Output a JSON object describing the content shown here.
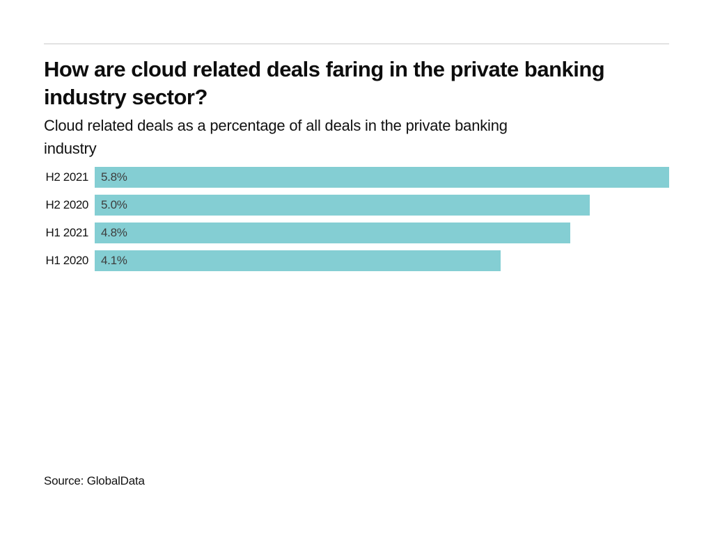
{
  "header": {
    "title_lines": [
      "How are cloud related deals faring in the private banking",
      "industry sector?"
    ],
    "subtitle_lines": [
      "Cloud related deals as a percentage of all deals in the private banking",
      "industry"
    ]
  },
  "chart_data": {
    "type": "bar",
    "orientation": "horizontal",
    "title": "How are cloud related deals faring in the private banking industry sector?",
    "subtitle": "Cloud related deals as a percentage of all deals in the private banking industry",
    "categories": [
      "H2 2021",
      "H2 2020",
      "H1 2021",
      "H1 2020"
    ],
    "values": [
      5.8,
      5.0,
      4.8,
      4.1
    ],
    "value_labels": [
      "5.8%",
      "5.0%",
      "4.8%",
      "4.1%"
    ],
    "xlabel": "",
    "ylabel": "",
    "xlim": [
      0,
      5.8
    ],
    "grid": false,
    "legend": false,
    "bar_color": "#84ced3",
    "value_label_color": "#3d3d3d",
    "category_label_color": "#111111",
    "divider_color": "#e2e2e2"
  },
  "footer": {
    "source": "Source: GlobalData"
  }
}
